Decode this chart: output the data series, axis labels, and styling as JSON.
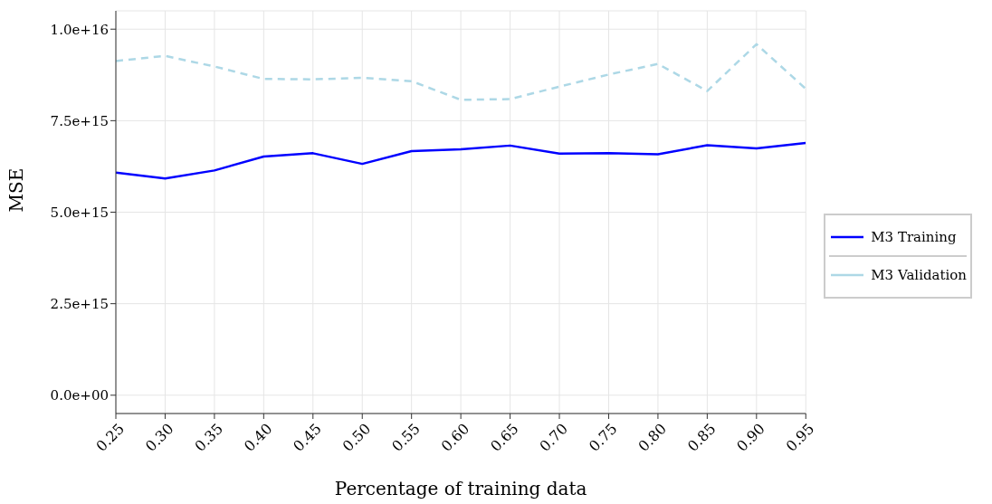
{
  "chart_data": {
    "type": "line",
    "xlabel": "Percentage of training data",
    "ylabel": "MSE",
    "x": [
      0.25,
      0.3,
      0.35,
      0.4,
      0.45,
      0.5,
      0.55,
      0.6,
      0.65,
      0.7,
      0.75,
      0.8,
      0.85,
      0.9,
      0.95
    ],
    "series": [
      {
        "name": "M3 Training",
        "color": "#0000ff",
        "line_style": "solid",
        "values": [
          6080000000000000.0,
          5920000000000000.0,
          6140000000000000.0,
          6520000000000000.0,
          6610000000000000.0,
          6320000000000000.0,
          6670000000000000.0,
          6720000000000000.0,
          6820000000000000.0,
          6600000000000000.0,
          6610000000000000.0,
          6580000000000000.0,
          6830000000000000.0,
          6740000000000000.0,
          6890000000000000.0
        ]
      },
      {
        "name": "M3 Validation",
        "color": "#add8e6",
        "line_style": "dashed",
        "values": [
          9130000000000000.0,
          9270000000000000.0,
          8980000000000000.0,
          8640000000000000.0,
          8630000000000000.0,
          8670000000000000.0,
          8580000000000000.0,
          8070000000000000.0,
          8090000000000000.0,
          8430000000000000.0,
          8760000000000000.0,
          9050000000000000.0,
          8310000000000000.0,
          9590000000000000.0,
          8370000000000000.0
        ]
      }
    ],
    "xlim": [
      0.25,
      0.95
    ],
    "xticks": [
      {
        "value": 0.25,
        "label": "0.25"
      },
      {
        "value": 0.3,
        "label": "0.30"
      },
      {
        "value": 0.35,
        "label": "0.35"
      },
      {
        "value": 0.4,
        "label": "0.40"
      },
      {
        "value": 0.45,
        "label": "0.45"
      },
      {
        "value": 0.5,
        "label": "0.50"
      },
      {
        "value": 0.55,
        "label": "0.55"
      },
      {
        "value": 0.6,
        "label": "0.60"
      },
      {
        "value": 0.65,
        "label": "0.65"
      },
      {
        "value": 0.7,
        "label": "0.70"
      },
      {
        "value": 0.75,
        "label": "0.75"
      },
      {
        "value": 0.8,
        "label": "0.80"
      },
      {
        "value": 0.85,
        "label": "0.85"
      },
      {
        "value": 0.9,
        "label": "0.90"
      },
      {
        "value": 0.95,
        "label": "0.95"
      }
    ],
    "ylim": [
      -500000000000000.0,
      1.05e+16
    ],
    "yticks": [
      {
        "value": 0,
        "label": "0.0e+00"
      },
      {
        "value": 2500000000000000.0,
        "label": "2.5e+15"
      },
      {
        "value": 5000000000000000.0,
        "label": "5.0e+15"
      },
      {
        "value": 7500000000000000.0,
        "label": "7.5e+15"
      },
      {
        "value": 1e+16,
        "label": "1.0e+16"
      }
    ],
    "grid": true,
    "legend": "right",
    "marker": "none"
  }
}
